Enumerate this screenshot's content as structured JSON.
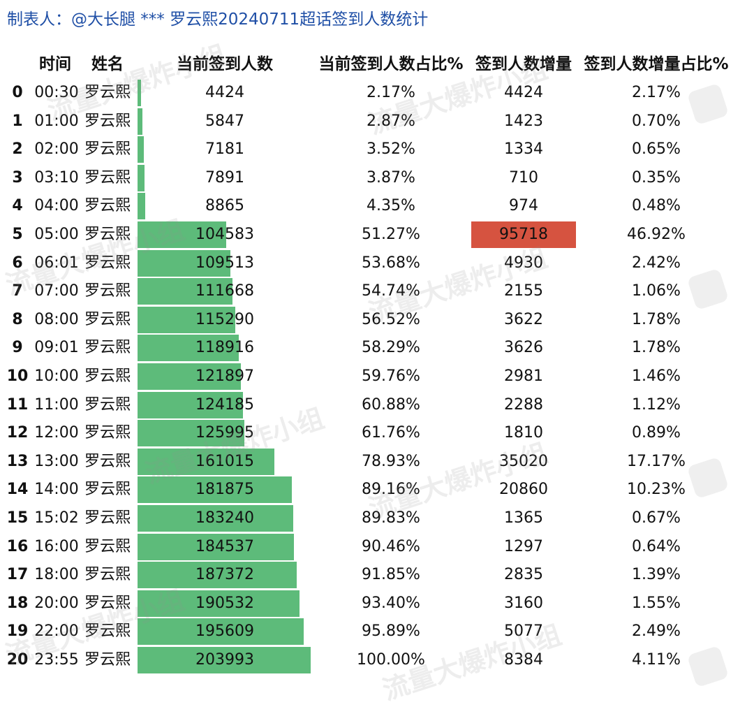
{
  "header": {
    "title": "制表人：@大长腿 *** 罗云熙20240711超话签到人数统计"
  },
  "watermark": {
    "text": "流量大爆炸小组"
  },
  "colors": {
    "bar": "#5dbb7a",
    "highlight": "#d65340",
    "header_text": "#1f4fa6"
  },
  "chart_data": {
    "type": "table",
    "columns": [
      "时间",
      "姓名",
      "当前签到人数",
      "当前签到人数占比%",
      "签到人数增量",
      "签到人数增量占比%"
    ],
    "bar_max": 203993,
    "highlight_row": 5,
    "rows": [
      {
        "idx": "0",
        "time": "00:30",
        "name": "罗云熙",
        "count": 4424,
        "count_pct": "2.17%",
        "inc": 4424,
        "inc_pct": "2.17%"
      },
      {
        "idx": "1",
        "time": "01:00",
        "name": "罗云熙",
        "count": 5847,
        "count_pct": "2.87%",
        "inc": 1423,
        "inc_pct": "0.70%"
      },
      {
        "idx": "2",
        "time": "02:00",
        "name": "罗云熙",
        "count": 7181,
        "count_pct": "3.52%",
        "inc": 1334,
        "inc_pct": "0.65%"
      },
      {
        "idx": "3",
        "time": "03:10",
        "name": "罗云熙",
        "count": 7891,
        "count_pct": "3.87%",
        "inc": 710,
        "inc_pct": "0.35%"
      },
      {
        "idx": "4",
        "time": "04:00",
        "name": "罗云熙",
        "count": 8865,
        "count_pct": "4.35%",
        "inc": 974,
        "inc_pct": "0.48%"
      },
      {
        "idx": "5",
        "time": "05:00",
        "name": "罗云熙",
        "count": 104583,
        "count_pct": "51.27%",
        "inc": 95718,
        "inc_pct": "46.92%"
      },
      {
        "idx": "6",
        "time": "06:01",
        "name": "罗云熙",
        "count": 109513,
        "count_pct": "53.68%",
        "inc": 4930,
        "inc_pct": "2.42%"
      },
      {
        "idx": "7",
        "time": "07:00",
        "name": "罗云熙",
        "count": 111668,
        "count_pct": "54.74%",
        "inc": 2155,
        "inc_pct": "1.06%"
      },
      {
        "idx": "8",
        "time": "08:00",
        "name": "罗云熙",
        "count": 115290,
        "count_pct": "56.52%",
        "inc": 3622,
        "inc_pct": "1.78%"
      },
      {
        "idx": "9",
        "time": "09:01",
        "name": "罗云熙",
        "count": 118916,
        "count_pct": "58.29%",
        "inc": 3626,
        "inc_pct": "1.78%"
      },
      {
        "idx": "10",
        "time": "10:00",
        "name": "罗云熙",
        "count": 121897,
        "count_pct": "59.76%",
        "inc": 2981,
        "inc_pct": "1.46%"
      },
      {
        "idx": "11",
        "time": "11:00",
        "name": "罗云熙",
        "count": 124185,
        "count_pct": "60.88%",
        "inc": 2288,
        "inc_pct": "1.12%"
      },
      {
        "idx": "12",
        "time": "12:00",
        "name": "罗云熙",
        "count": 125995,
        "count_pct": "61.76%",
        "inc": 1810,
        "inc_pct": "0.89%"
      },
      {
        "idx": "13",
        "time": "13:00",
        "name": "罗云熙",
        "count": 161015,
        "count_pct": "78.93%",
        "inc": 35020,
        "inc_pct": "17.17%"
      },
      {
        "idx": "14",
        "time": "14:00",
        "name": "罗云熙",
        "count": 181875,
        "count_pct": "89.16%",
        "inc": 20860,
        "inc_pct": "10.23%"
      },
      {
        "idx": "15",
        "time": "15:02",
        "name": "罗云熙",
        "count": 183240,
        "count_pct": "89.83%",
        "inc": 1365,
        "inc_pct": "0.67%"
      },
      {
        "idx": "16",
        "time": "16:00",
        "name": "罗云熙",
        "count": 184537,
        "count_pct": "90.46%",
        "inc": 1297,
        "inc_pct": "0.64%"
      },
      {
        "idx": "17",
        "time": "18:00",
        "name": "罗云熙",
        "count": 187372,
        "count_pct": "91.85%",
        "inc": 2835,
        "inc_pct": "1.39%"
      },
      {
        "idx": "18",
        "time": "20:00",
        "name": "罗云熙",
        "count": 190532,
        "count_pct": "93.40%",
        "inc": 3160,
        "inc_pct": "1.55%"
      },
      {
        "idx": "19",
        "time": "22:00",
        "name": "罗云熙",
        "count": 195609,
        "count_pct": "95.89%",
        "inc": 5077,
        "inc_pct": "2.49%"
      },
      {
        "idx": "20",
        "time": "23:55",
        "name": "罗云熙",
        "count": 203993,
        "count_pct": "100.00%",
        "inc": 8384,
        "inc_pct": "4.11%"
      }
    ]
  }
}
